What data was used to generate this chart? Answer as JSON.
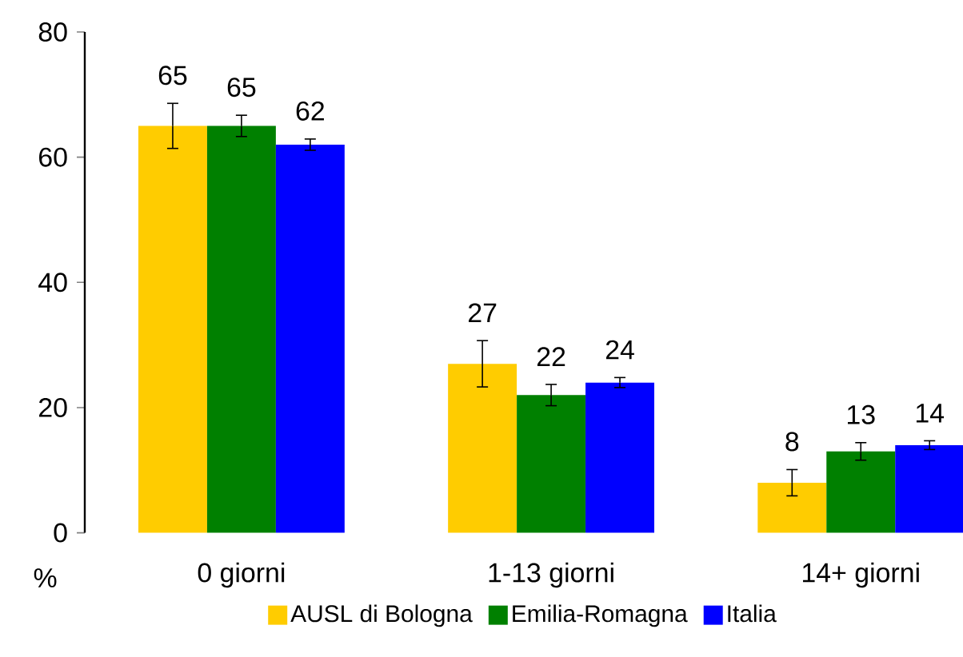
{
  "chart_data": {
    "type": "bar",
    "ylabel": "%",
    "categories": [
      "0 giorni",
      "1-13 giorni",
      "14+ giorni"
    ],
    "series": [
      {
        "name": "AUSL di Bologna",
        "color": "#ffcc00",
        "values": [
          65,
          27,
          8
        ],
        "errors": [
          3.6,
          3.7,
          2.1
        ],
        "value_labels": [
          "65",
          "27",
          "8"
        ]
      },
      {
        "name": "Emilia-Romagna",
        "color": "#008000",
        "values": [
          65,
          22,
          13
        ],
        "errors": [
          1.7,
          1.7,
          1.4
        ],
        "value_labels": [
          "65",
          "22",
          "13"
        ]
      },
      {
        "name": "Italia",
        "color": "#0000ff",
        "values": [
          62,
          24,
          14
        ],
        "errors": [
          0.9,
          0.8,
          0.7
        ],
        "value_labels": [
          "62",
          "24",
          "14"
        ]
      }
    ],
    "ylim": [
      0,
      80
    ],
    "yticks": [
      0,
      20,
      40,
      60,
      80
    ],
    "grid": false,
    "legend": "bottom"
  }
}
